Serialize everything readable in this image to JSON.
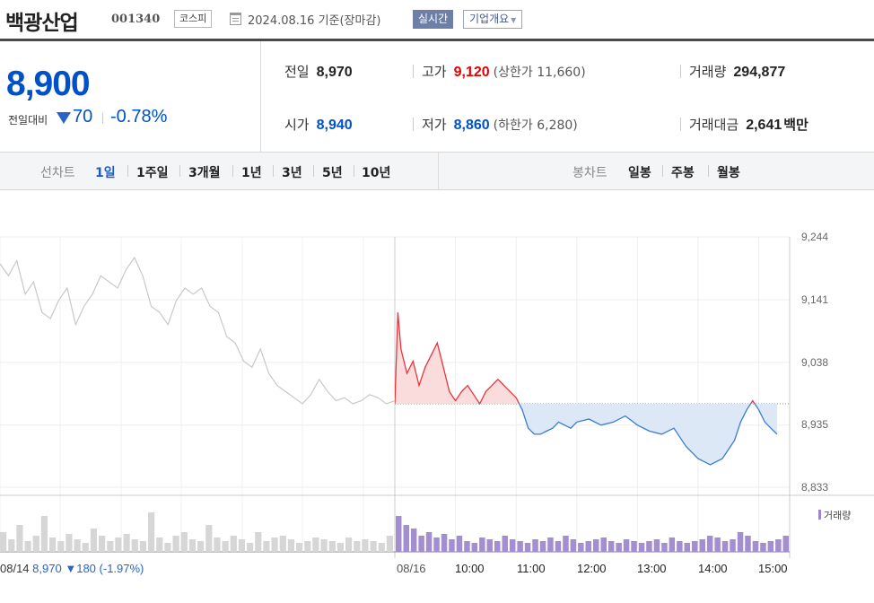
{
  "header": {
    "company": "백광산업",
    "code": "001340",
    "market": "코스피",
    "date": "2024.08.16 기준(장마감)",
    "realtime_label": "실시간",
    "overview_label": "기업개요"
  },
  "price": {
    "current": "8,900",
    "diff_label": "전일대비",
    "diff_direction": "down",
    "diff_value": "70",
    "diff_rate": "-0.78%"
  },
  "stats": {
    "prev_close_label": "전일",
    "prev_close": "8,970",
    "high_label": "고가",
    "high": "9,120",
    "upper_limit": "(상한가 11,660)",
    "volume_label": "거래량",
    "volume": "294,877",
    "open_label": "시가",
    "open": "8,940",
    "low_label": "저가",
    "low": "8,860",
    "lower_limit": "(하한가 6,280)",
    "amount_label": "거래대금",
    "amount": "2,641",
    "amount_unit": "백만"
  },
  "tabs": {
    "line_chart_label": "선차트",
    "periods": [
      "1일",
      "1주일",
      "3개월",
      "1년",
      "3년",
      "5년",
      "10년"
    ],
    "active_period": "1일",
    "candle_chart_label": "봉차트",
    "candle_periods": [
      "일봉",
      "주봉",
      "월봉"
    ]
  },
  "chart_data": {
    "type": "line",
    "title": "",
    "y_ticks": [
      "9,244",
      "9,141",
      "9,038",
      "8,935",
      "8,833"
    ],
    "ylim": [
      8833,
      9244
    ],
    "x_ticks": [
      "08/16",
      "10:00",
      "11:00",
      "12:00",
      "13:00",
      "14:00",
      "15:00"
    ],
    "baseline": 8970,
    "previous_day": {
      "date": "08/14",
      "close": "8,970",
      "change": "▼180",
      "rate": "(-1.97%)",
      "values": [
        9200,
        9180,
        9205,
        9150,
        9170,
        9120,
        9110,
        9140,
        9160,
        9100,
        9130,
        9150,
        9180,
        9170,
        9160,
        9190,
        9210,
        9180,
        9130,
        9120,
        9100,
        9140,
        9160,
        9150,
        9160,
        9130,
        9120,
        9080,
        9070,
        9040,
        9030,
        9060,
        9020,
        9000,
        8990,
        8980,
        8970,
        8985,
        9010,
        8990,
        8975,
        8980,
        8970,
        8975,
        8985,
        8980,
        8970,
        8975
      ]
    },
    "today": {
      "series_times": [
        9.0,
        9.05,
        9.1,
        9.2,
        9.3,
        9.4,
        9.5,
        9.6,
        9.7,
        9.8,
        9.9,
        10.0,
        10.1,
        10.2,
        10.3,
        10.4,
        10.5,
        10.6,
        10.7,
        10.8,
        10.9,
        11.0,
        11.1,
        11.2,
        11.3,
        11.4,
        11.5,
        11.6,
        11.7,
        11.8,
        11.9,
        12.0,
        12.2,
        12.4,
        12.6,
        12.8,
        13.0,
        13.2,
        13.4,
        13.6,
        13.8,
        14.0,
        14.2,
        14.4,
        14.6,
        14.7,
        14.8,
        14.9,
        15.0,
        15.1,
        15.2,
        15.3
      ],
      "values": [
        8970,
        9120,
        9060,
        9020,
        9040,
        9000,
        9030,
        9050,
        9070,
        9030,
        8990,
        8975,
        8990,
        9000,
        8985,
        8970,
        8990,
        9000,
        9010,
        9000,
        8990,
        8980,
        8960,
        8930,
        8920,
        8920,
        8925,
        8930,
        8940,
        8935,
        8930,
        8940,
        8945,
        8935,
        8940,
        8950,
        8935,
        8925,
        8920,
        8930,
        8900,
        8880,
        8870,
        8880,
        8910,
        8940,
        8960,
        8975,
        8960,
        8940,
        8930,
        8920
      ]
    },
    "volume_legend": "거래량",
    "volume_prev": [
      22,
      14,
      30,
      12,
      18,
      40,
      16,
      12,
      20,
      14,
      10,
      26,
      18,
      12,
      16,
      20,
      14,
      12,
      44,
      16,
      10,
      18,
      22,
      14,
      12,
      30,
      16,
      12,
      18,
      14,
      10,
      22,
      12,
      16,
      18,
      14,
      10,
      12,
      16,
      14,
      12,
      10,
      16,
      12,
      14,
      12,
      10,
      18
    ],
    "volume_today": [
      40,
      30,
      26,
      18,
      22,
      16,
      20,
      14,
      18,
      12,
      10,
      16,
      14,
      12,
      18,
      14,
      12,
      10,
      14,
      12,
      16,
      12,
      18,
      14,
      10,
      12,
      14,
      16,
      12,
      10,
      14,
      12,
      10,
      12,
      14,
      10,
      16,
      12,
      10,
      12,
      14,
      18,
      16,
      12,
      14,
      22,
      18,
      12,
      10,
      12,
      14,
      18
    ]
  }
}
